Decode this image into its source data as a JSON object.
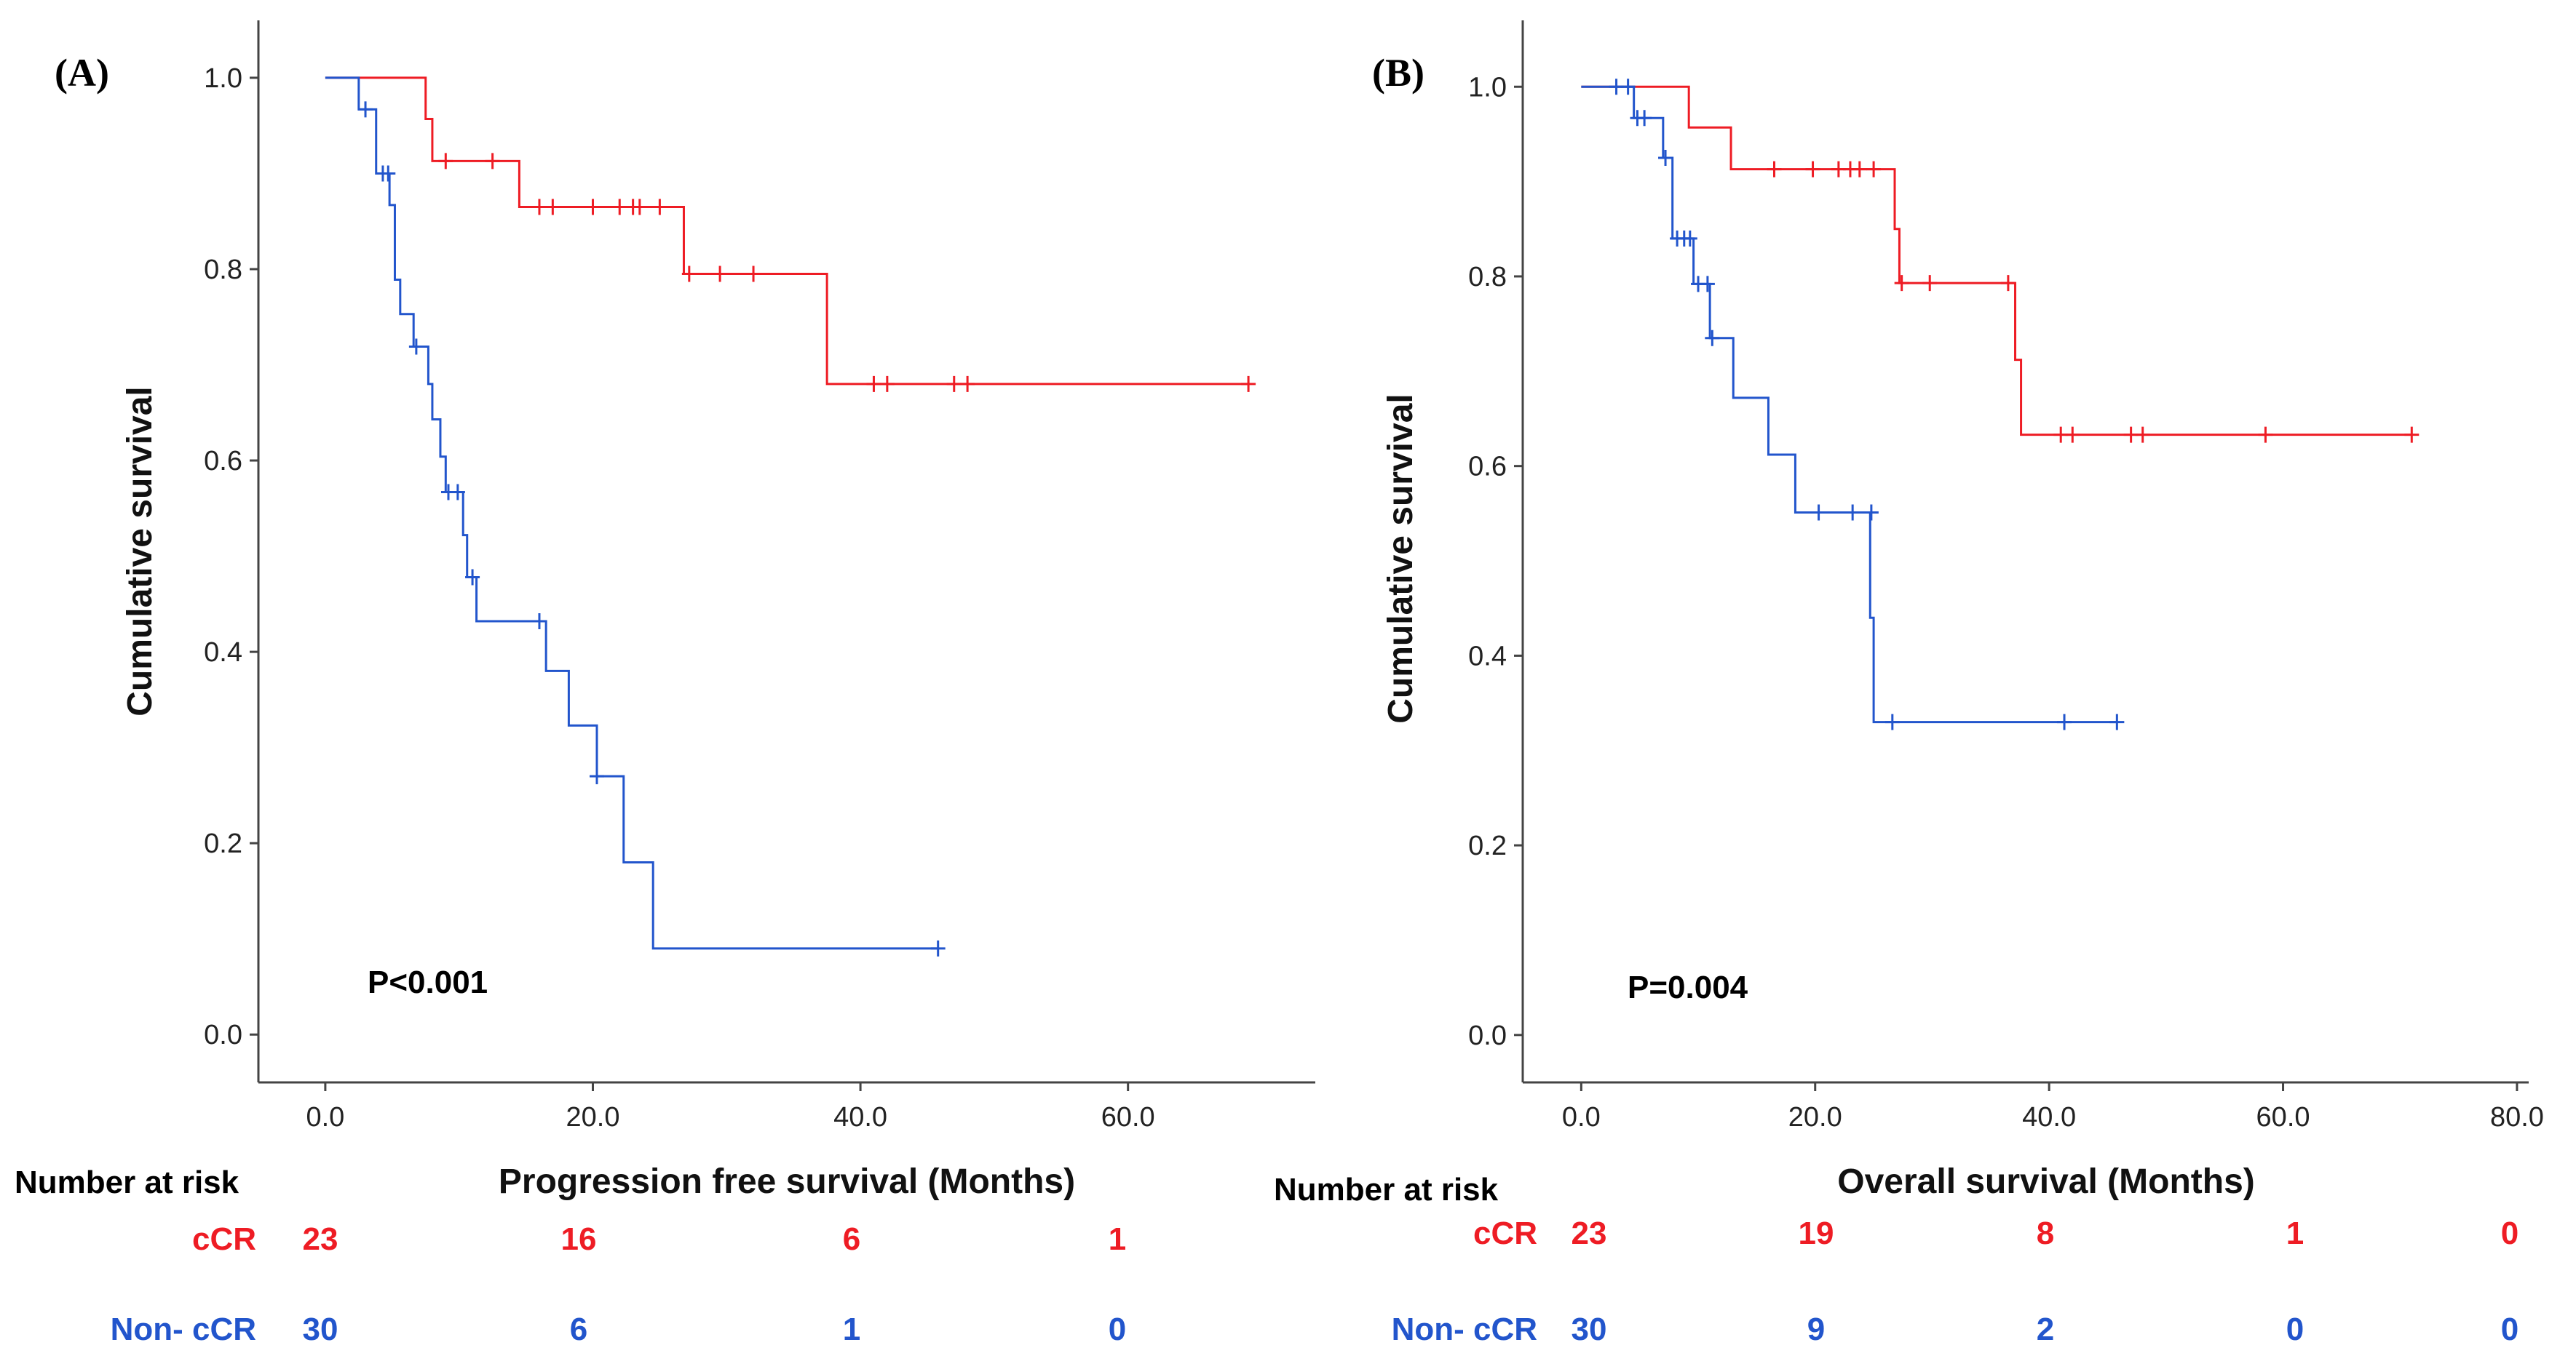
{
  "colors": {
    "ccr": "#ee1c24",
    "nonccr": "#2255cc",
    "axis": "#444444"
  },
  "risk_title": "Number at risk",
  "chart_data": [
    {
      "type": "line",
      "subtype": "kaplan-meier",
      "panel": "(A)",
      "xlabel": "Progression free survival (Months)",
      "ylabel": "Cumulative survival",
      "xlim": [
        -5,
        74
      ],
      "ylim": [
        -0.05,
        1.06
      ],
      "xticks": [
        0,
        20,
        40,
        60
      ],
      "xtick_labels": [
        "0.0",
        "20.0",
        "40.0",
        "60.0"
      ],
      "yticks": [
        0,
        0.2,
        0.4,
        0.6,
        0.8,
        1.0
      ],
      "ytick_labels": [
        "0.0",
        "0.2",
        "0.4",
        "0.6",
        "0.8",
        "1.0"
      ],
      "p_value": "P<0.001",
      "series": [
        {
          "name": "cCR",
          "color": "#ee1c24",
          "steps": [
            [
              0,
              1.0
            ],
            [
              7.5,
              0.957
            ],
            [
              8.0,
              0.913
            ],
            [
              14.5,
              0.865
            ],
            [
              26.8,
              0.795
            ],
            [
              37.5,
              0.68
            ]
          ],
          "end": 69,
          "censored": [
            [
              9,
              0.913
            ],
            [
              12.5,
              0.913
            ],
            [
              16,
              0.865
            ],
            [
              17,
              0.865
            ],
            [
              20,
              0.865
            ],
            [
              22,
              0.865
            ],
            [
              23,
              0.865
            ],
            [
              23.5,
              0.865
            ],
            [
              25,
              0.865
            ],
            [
              27.2,
              0.795
            ],
            [
              29.5,
              0.795
            ],
            [
              32,
              0.795
            ],
            [
              41,
              0.68
            ],
            [
              42,
              0.68
            ],
            [
              47,
              0.68
            ],
            [
              48,
              0.68
            ],
            [
              69,
              0.68
            ]
          ]
        },
        {
          "name": "Non- cCR",
          "color": "#2255cc",
          "steps": [
            [
              0,
              1.0
            ],
            [
              2.5,
              0.967
            ],
            [
              3.8,
              0.9
            ],
            [
              4.8,
              0.867
            ],
            [
              5.2,
              0.789
            ],
            [
              5.6,
              0.753
            ],
            [
              6.6,
              0.719
            ],
            [
              7.7,
              0.68
            ],
            [
              8.0,
              0.643
            ],
            [
              8.6,
              0.604
            ],
            [
              9.0,
              0.567
            ],
            [
              10.3,
              0.522
            ],
            [
              10.6,
              0.478
            ],
            [
              11.3,
              0.432
            ],
            [
              16.5,
              0.38
            ],
            [
              18.2,
              0.323
            ],
            [
              20.3,
              0.27
            ],
            [
              22.3,
              0.18
            ],
            [
              24.5,
              0.09
            ]
          ],
          "end": 45.8,
          "censored": [
            [
              3.0,
              0.967
            ],
            [
              4.3,
              0.9
            ],
            [
              4.7,
              0.9
            ],
            [
              6.8,
              0.719
            ],
            [
              9.2,
              0.567
            ],
            [
              9.9,
              0.567
            ],
            [
              11.0,
              0.478
            ],
            [
              16.0,
              0.432
            ],
            [
              20.3,
              0.27
            ],
            [
              45.8,
              0.09
            ]
          ]
        }
      ],
      "risk_table": {
        "times": [
          0,
          20,
          40,
          60
        ],
        "rows": [
          {
            "label": "cCR",
            "values": [
              "23",
              "16",
              "6",
              "1"
            ]
          },
          {
            "label": "Non- cCR",
            "values": [
              "30",
              "6",
              "1",
              "0"
            ]
          }
        ]
      }
    },
    {
      "type": "line",
      "subtype": "kaplan-meier",
      "panel": "(B)",
      "xlabel": "Overall survival (Months)",
      "ylabel": "Cumulative survival",
      "xlim": [
        -5,
        81
      ],
      "ylim": [
        -0.05,
        1.07
      ],
      "xticks": [
        0,
        20,
        40,
        60,
        80
      ],
      "xtick_labels": [
        "0.0",
        "20.0",
        "40.0",
        "60.0",
        "80.0"
      ],
      "yticks": [
        0,
        0.2,
        0.4,
        0.6,
        0.8,
        1.0
      ],
      "ytick_labels": [
        "0.0",
        "0.2",
        "0.4",
        "0.6",
        "0.8",
        "1.0"
      ],
      "p_value": "P=0.004",
      "series": [
        {
          "name": "cCR",
          "color": "#ee1c24",
          "steps": [
            [
              0,
              1.0
            ],
            [
              9.2,
              0.957
            ],
            [
              12.8,
              0.913
            ],
            [
              26.8,
              0.85
            ],
            [
              27.2,
              0.793
            ],
            [
              37.1,
              0.712
            ],
            [
              37.6,
              0.633
            ]
          ],
          "end": 71,
          "censored": [
            [
              16.5,
              0.913
            ],
            [
              19.8,
              0.913
            ],
            [
              22,
              0.913
            ],
            [
              23,
              0.913
            ],
            [
              23.8,
              0.913
            ],
            [
              25,
              0.913
            ],
            [
              27.4,
              0.793
            ],
            [
              29.8,
              0.793
            ],
            [
              36.5,
              0.793
            ],
            [
              41,
              0.633
            ],
            [
              42,
              0.633
            ],
            [
              47,
              0.633
            ],
            [
              48,
              0.633
            ],
            [
              58.5,
              0.633
            ],
            [
              71,
              0.633
            ]
          ]
        },
        {
          "name": "Non- cCR",
          "color": "#2255cc",
          "steps": [
            [
              0,
              1.0
            ],
            [
              4.5,
              0.967
            ],
            [
              7.0,
              0.925
            ],
            [
              7.8,
              0.84
            ],
            [
              9.6,
              0.792
            ],
            [
              11.0,
              0.735
            ],
            [
              13.0,
              0.672
            ],
            [
              16.0,
              0.612
            ],
            [
              18.3,
              0.551
            ],
            [
              24.7,
              0.44
            ],
            [
              25.0,
              0.33
            ]
          ],
          "end": 45.8,
          "censored": [
            [
              3,
              1.0
            ],
            [
              4,
              1.0
            ],
            [
              4.8,
              0.967
            ],
            [
              5.4,
              0.967
            ],
            [
              7.2,
              0.925
            ],
            [
              8.2,
              0.84
            ],
            [
              8.8,
              0.84
            ],
            [
              9.3,
              0.84
            ],
            [
              10.0,
              0.792
            ],
            [
              10.8,
              0.792
            ],
            [
              11.2,
              0.735
            ],
            [
              20.3,
              0.551
            ],
            [
              23.2,
              0.551
            ],
            [
              24.8,
              0.551
            ],
            [
              26.6,
              0.33
            ],
            [
              41.3,
              0.33
            ],
            [
              45.8,
              0.33
            ]
          ]
        }
      ],
      "risk_table": {
        "times": [
          0,
          20,
          40,
          60,
          80
        ],
        "rows": [
          {
            "label": "cCR",
            "values": [
              "23",
              "19",
              "8",
              "1",
              "0"
            ]
          },
          {
            "label": "Non- cCR",
            "values": [
              "30",
              "9",
              "2",
              "0",
              "0"
            ]
          }
        ]
      }
    }
  ]
}
